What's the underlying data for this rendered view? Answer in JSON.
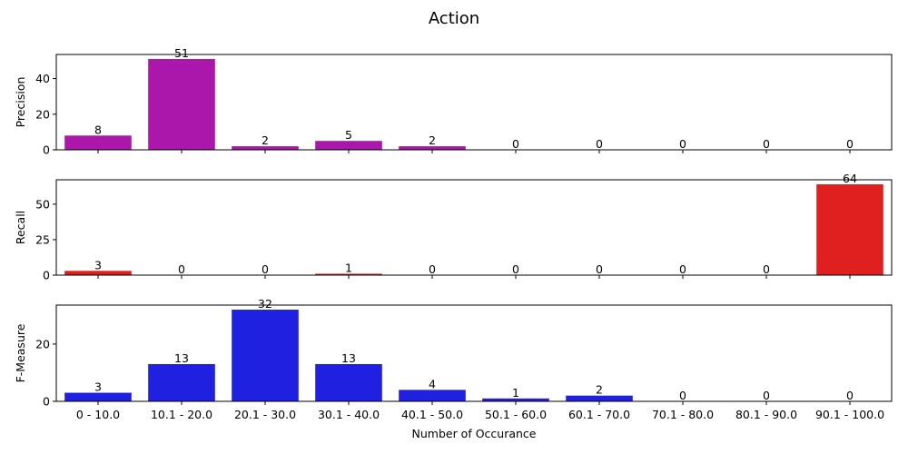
{
  "chart_data": {
    "type": "bar",
    "title": "Action",
    "xlabel": "Number of Occurance",
    "categories": [
      "0 - 10.0",
      "10.1 - 20.0",
      "20.1 - 30.0",
      "30.1 - 40.0",
      "40.1 - 50.0",
      "50.1 - 60.0",
      "60.1 - 70.0",
      "70.1 - 80.0",
      "80.1 - 90.0",
      "90.1 - 100.0"
    ],
    "subplots": [
      {
        "ylabel": "Precision",
        "color": "#aa17aa",
        "values": [
          8,
          51,
          2,
          5,
          2,
          0,
          0,
          0,
          0,
          0
        ],
        "ylim": [
          0,
          53.55
        ],
        "yticks": [
          0,
          20,
          40
        ]
      },
      {
        "ylabel": "Recall",
        "color": "#e01f1f",
        "values": [
          3,
          0,
          0,
          1,
          0,
          0,
          0,
          0,
          0,
          64
        ],
        "ylim": [
          0,
          67.2
        ],
        "yticks": [
          0,
          25,
          50
        ]
      },
      {
        "ylabel": "F-Measure",
        "color": "#2020e0",
        "values": [
          3,
          13,
          32,
          13,
          4,
          1,
          2,
          0,
          0,
          0
        ],
        "ylim": [
          0,
          33.6
        ],
        "yticks": [
          0,
          20
        ]
      }
    ]
  }
}
